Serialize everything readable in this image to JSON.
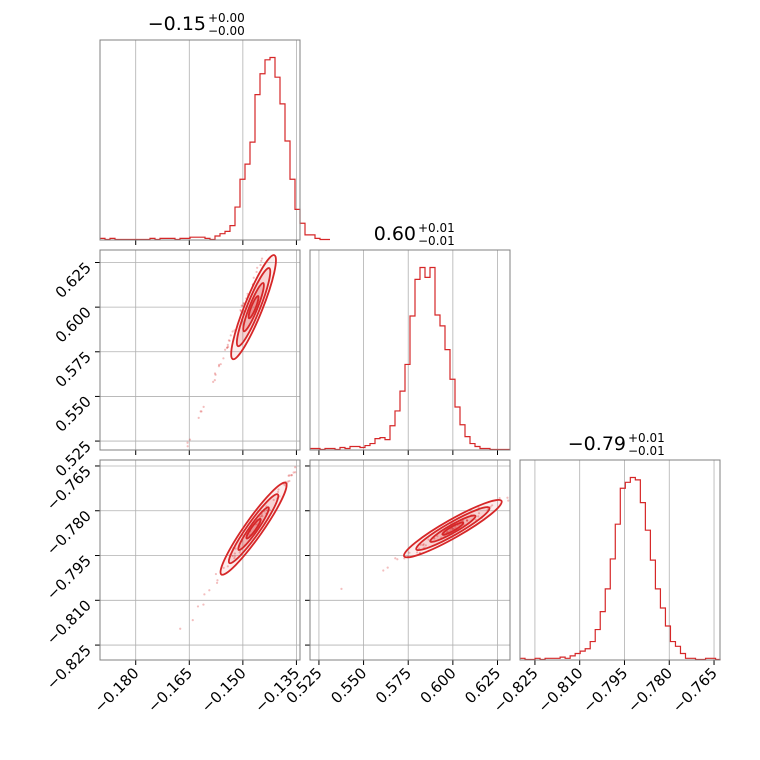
{
  "chart_data": {
    "type": "corner",
    "color": "#d62728",
    "grid": true,
    "parameters": [
      {
        "title": {
          "value": "−0.15",
          "plus": "+0.00",
          "minus": "−0.00"
        },
        "range": [
          -0.19,
          -0.134
        ],
        "ticks": [
          -0.18,
          -0.165,
          -0.15,
          -0.135
        ],
        "tick_labels": [
          "−0.180",
          "−0.165",
          "−0.150",
          "−0.135"
        ],
        "hist": {
          "bin_start": -0.19,
          "bin_width": 0.0014,
          "counts": [
            1,
            0,
            1,
            0,
            0,
            0,
            0,
            0,
            0,
            0,
            1,
            0,
            1,
            1,
            1,
            0,
            1,
            1,
            2,
            2,
            2,
            1,
            0,
            3,
            5,
            7,
            12,
            28,
            52,
            65,
            84,
            125,
            143,
            155,
            157,
            140,
            117,
            85,
            52,
            26,
            14,
            4,
            4,
            1,
            0,
            0
          ]
        }
      },
      {
        "title": {
          "value": "0.60",
          "plus": "+0.01",
          "minus": "−0.01"
        },
        "range": [
          0.52,
          0.632
        ],
        "ticks": [
          0.525,
          0.55,
          0.575,
          0.6,
          0.625
        ],
        "tick_labels": [
          "0.525",
          "0.550",
          "0.575",
          "0.600",
          "0.625"
        ],
        "hist": {
          "bin_start": 0.52,
          "bin_width": 0.0028,
          "counts": [
            1,
            1,
            0,
            1,
            1,
            0,
            2,
            1,
            3,
            3,
            2,
            4,
            6,
            11,
            12,
            10,
            24,
            39,
            59,
            86,
            135,
            172,
            184,
            174,
            184,
            136,
            125,
            101,
            71,
            43,
            25,
            13,
            6,
            3,
            1,
            1,
            0,
            0,
            0,
            0
          ]
        }
      },
      {
        "title": {
          "value": "−0.79",
          "plus": "+0.01",
          "minus": "−0.01"
        },
        "range": [
          -0.83,
          -0.763
        ],
        "ticks": [
          -0.825,
          -0.81,
          -0.795,
          -0.78,
          -0.765
        ],
        "tick_labels": [
          "−0.825",
          "−0.810",
          "−0.795",
          "−0.780",
          "−0.765"
        ],
        "hist": {
          "bin_start": -0.83,
          "bin_width": 0.00168,
          "counts": [
            1,
            0,
            0,
            1,
            0,
            1,
            1,
            1,
            2,
            1,
            3,
            5,
            7,
            9,
            15,
            25,
            40,
            59,
            84,
            113,
            143,
            148,
            152,
            150,
            131,
            108,
            83,
            59,
            43,
            28,
            15,
            11,
            5,
            1,
            1,
            0,
            0,
            1,
            1,
            0
          ]
        }
      }
    ],
    "pairs": [
      {
        "x": 0,
        "y": 1,
        "slope": 5.0,
        "intercept": 1.35,
        "spread": 0.0012,
        "samples": 70,
        "center": [
          -0.147,
          0.6
        ]
      },
      {
        "x": 0,
        "y": 2,
        "slope": 1.7,
        "intercept": -0.536,
        "spread": 0.0012,
        "samples": 70,
        "center": [
          -0.147,
          -0.786
        ]
      },
      {
        "x": 1,
        "y": 2,
        "slope": 0.34,
        "intercept": -0.99,
        "spread": 0.0009,
        "samples": 80,
        "center": [
          0.6,
          -0.786
        ]
      }
    ]
  }
}
